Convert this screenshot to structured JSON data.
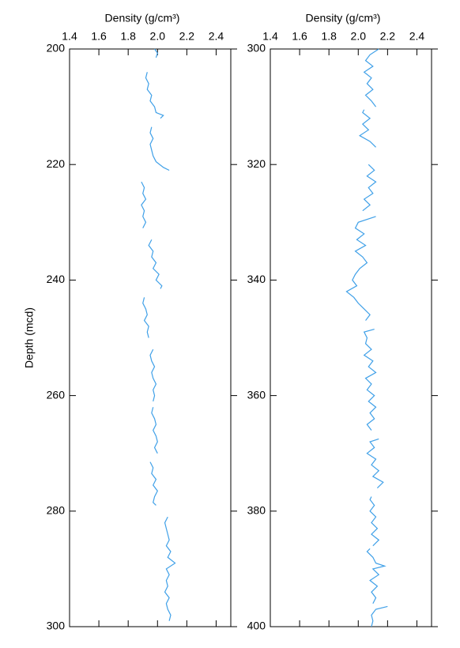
{
  "chart_data": [
    {
      "type": "line",
      "xlabel": "Density (g/cm³)",
      "ylabel": "Depth (mcd)",
      "xlim": [
        1.4,
        2.5
      ],
      "xticks": [
        1.4,
        1.6,
        1.8,
        {
          "value": 2,
          "label": "2.0"
        },
        2.2,
        2.4
      ],
      "ylim": [
        200,
        300
      ],
      "yticks": [
        200,
        220,
        240,
        260,
        280,
        300
      ],
      "color": "#3fa0e8",
      "depth": [
        200,
        200.7,
        201.5,
        null,
        204,
        205,
        206,
        207,
        208,
        209,
        210,
        211,
        211.5,
        212,
        null,
        213.5,
        214.5,
        215.5,
        216.5,
        217.5,
        218.5,
        219.5,
        220.5,
        221,
        null,
        223,
        224,
        225,
        226,
        227,
        228,
        229,
        230,
        231,
        null,
        233,
        234,
        235,
        236,
        237,
        238,
        239,
        240,
        241,
        241.5,
        null,
        243,
        244,
        245,
        246,
        247,
        248,
        249,
        250,
        null,
        252,
        253,
        254,
        255,
        256,
        257,
        258,
        259,
        260,
        261,
        null,
        262,
        263,
        264,
        265,
        266,
        267,
        268,
        269,
        270,
        null,
        271.5,
        272.5,
        273.5,
        274.5,
        275.5,
        276.5,
        277.5,
        278.5,
        279,
        null,
        281,
        282,
        283,
        284,
        285,
        286,
        287,
        288,
        289,
        290,
        291,
        292,
        293,
        294,
        295,
        296,
        297,
        298,
        299
      ],
      "values": [
        1.98,
        2.0,
        1.99,
        null,
        1.93,
        1.92,
        1.94,
        1.93,
        1.96,
        1.95,
        1.98,
        1.99,
        2.04,
        2.02,
        null,
        1.96,
        1.95,
        1.97,
        1.95,
        1.96,
        1.97,
        1.99,
        2.04,
        2.08,
        null,
        1.89,
        1.91,
        1.9,
        1.92,
        1.89,
        1.91,
        1.9,
        1.92,
        1.9,
        null,
        1.96,
        1.94,
        1.97,
        1.96,
        1.99,
        1.97,
        2.01,
        1.99,
        2.03,
        2.02,
        null,
        1.91,
        1.9,
        1.92,
        1.93,
        1.91,
        1.94,
        1.93,
        1.94,
        null,
        1.97,
        1.95,
        1.96,
        1.98,
        1.96,
        1.97,
        1.99,
        1.97,
        1.98,
        1.97,
        null,
        1.97,
        1.96,
        1.98,
        1.99,
        1.97,
        1.99,
        2.0,
        1.98,
        2.0,
        null,
        1.95,
        1.97,
        1.96,
        1.99,
        1.97,
        2.0,
        1.98,
        1.97,
        1.99,
        null,
        2.07,
        2.05,
        2.06,
        2.07,
        2.08,
        2.06,
        2.09,
        2.07,
        2.12,
        2.06,
        2.08,
        2.06,
        2.07,
        2.05,
        2.08,
        2.06,
        2.07,
        2.09,
        2.08
      ]
    },
    {
      "type": "line",
      "xlabel": "Density (g/cm³)",
      "xlim": [
        1.4,
        2.5
      ],
      "xticks": [
        1.4,
        1.6,
        1.8,
        {
          "value": 2,
          "label": "2.0"
        },
        2.2,
        2.4
      ],
      "ylim": [
        300,
        400
      ],
      "yticks": [
        300,
        320,
        340,
        360,
        380,
        400
      ],
      "color": "#3fa0e8",
      "depth": [
        300,
        301,
        302,
        303,
        304,
        305,
        306,
        307,
        308,
        309,
        310,
        null,
        310.5,
        311,
        312,
        313,
        314,
        315,
        316,
        317,
        null,
        320,
        321,
        322,
        323,
        324,
        325,
        326,
        327,
        328,
        null,
        329,
        330,
        331,
        332,
        333,
        334,
        335,
        336,
        337,
        338,
        339,
        340,
        341,
        342,
        343,
        344,
        345,
        346,
        347,
        null,
        348.5,
        349,
        350,
        351,
        352,
        353,
        354,
        355,
        356,
        357,
        358,
        359,
        360,
        361,
        362,
        363,
        364,
        365,
        366,
        null,
        367.5,
        368,
        369,
        370,
        371,
        372,
        373,
        374,
        375,
        376,
        null,
        377.5,
        378,
        379,
        380,
        381,
        382,
        383,
        384,
        385,
        386,
        null,
        386.5,
        387,
        388,
        389,
        389.5,
        390,
        391,
        392,
        393,
        394,
        395,
        396,
        null,
        396.5,
        397,
        398,
        399,
        400
      ],
      "values": [
        2.14,
        2.08,
        2.05,
        2.1,
        2.04,
        2.09,
        2.06,
        2.1,
        2.05,
        2.09,
        2.12,
        null,
        2.04,
        2.03,
        2.08,
        2.03,
        2.07,
        2.01,
        2.08,
        2.12,
        null,
        2.07,
        2.11,
        2.06,
        2.12,
        2.07,
        2.1,
        2.04,
        2.08,
        2.03,
        null,
        2.12,
        2.0,
        1.98,
        2.04,
        1.99,
        2.05,
        1.98,
        2.03,
        2.06,
        2.01,
        1.98,
        1.96,
        1.99,
        1.92,
        1.97,
        2.0,
        2.04,
        2.08,
        2.05,
        null,
        2.11,
        2.04,
        2.06,
        2.05,
        2.09,
        2.04,
        2.1,
        2.07,
        2.12,
        2.05,
        2.09,
        2.06,
        2.11,
        2.07,
        2.12,
        2.08,
        2.11,
        2.06,
        2.09,
        null,
        2.14,
        2.08,
        2.11,
        2.06,
        2.12,
        2.09,
        2.14,
        2.1,
        2.17,
        2.13,
        null,
        2.09,
        2.08,
        2.11,
        2.08,
        2.12,
        2.09,
        2.13,
        2.09,
        2.14,
        2.1,
        null,
        2.08,
        2.06,
        2.1,
        2.12,
        2.18,
        2.1,
        2.14,
        2.08,
        2.13,
        2.09,
        2.12,
        2.1,
        null,
        2.2,
        2.12,
        2.09,
        2.1,
        2.09
      ]
    }
  ]
}
